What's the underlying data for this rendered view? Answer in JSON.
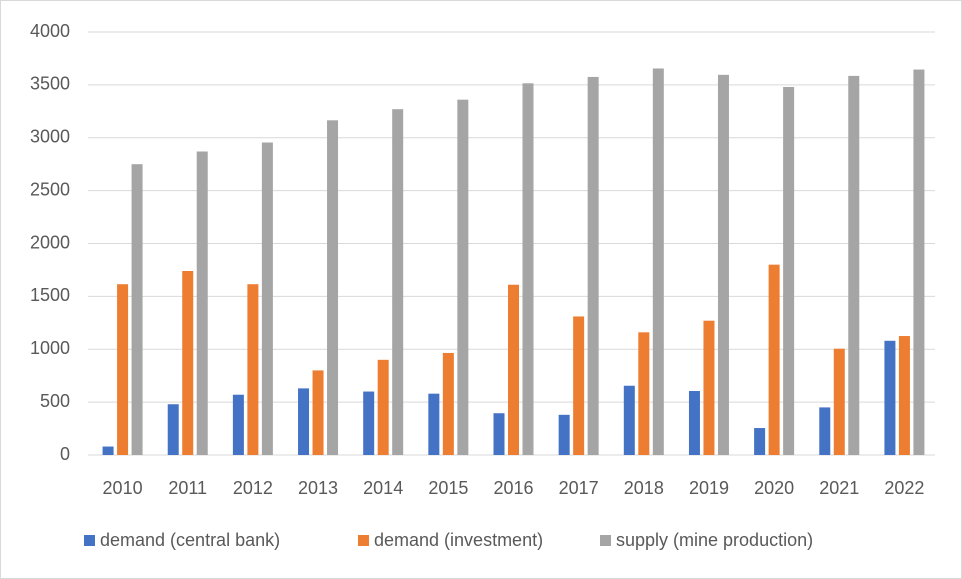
{
  "chart_data": {
    "type": "bar",
    "categories": [
      "2010",
      "2011",
      "2012",
      "2013",
      "2014",
      "2015",
      "2016",
      "2017",
      "2018",
      "2019",
      "2020",
      "2021",
      "2022"
    ],
    "series": [
      {
        "name": "demand (central bank)",
        "color": "#4472c4",
        "values": [
          80,
          480,
          570,
          630,
          600,
          580,
          395,
          380,
          655,
          605,
          255,
          450,
          1080
        ]
      },
      {
        "name": "demand (investment)",
        "color": "#ed7d31",
        "values": [
          1615,
          1740,
          1615,
          800,
          900,
          965,
          1610,
          1310,
          1160,
          1270,
          1800,
          1005,
          1125
        ]
      },
      {
        "name": "supply (mine production)",
        "color": "#a5a5a5",
        "values": [
          2750,
          2870,
          2955,
          3165,
          3270,
          3360,
          3515,
          3575,
          3655,
          3595,
          3480,
          3585,
          3645
        ]
      }
    ],
    "ylim": [
      0,
      4000
    ],
    "yticks": [
      0,
      500,
      1000,
      1500,
      2000,
      2500,
      3000,
      3500,
      4000
    ],
    "grid": true,
    "legend": "bottom"
  }
}
